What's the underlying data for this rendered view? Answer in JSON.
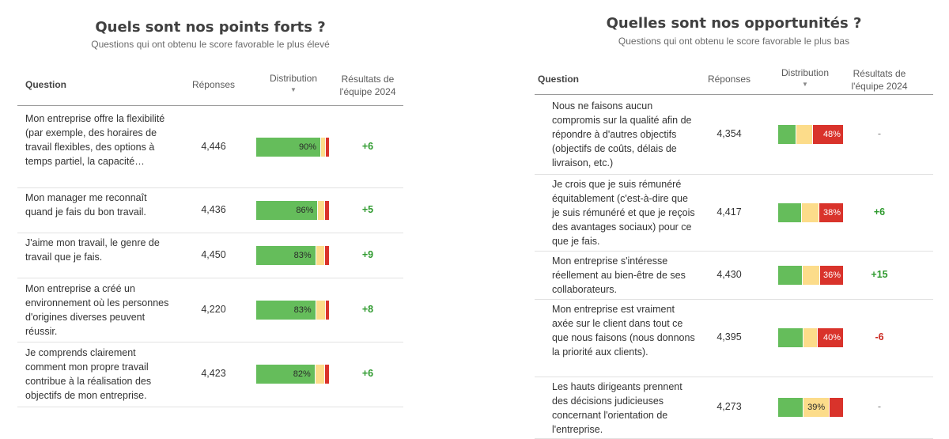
{
  "left_panel": {
    "title": "Quels sont nos points forts ?",
    "subtitle": "Questions qui ont obtenu le score favorable le plus élevé",
    "columns": {
      "question": "Question",
      "responses": "Réponses",
      "distribution": "Distribution",
      "results": "Résultats de l'équipe 2024"
    },
    "rows": [
      {
        "question": "Mon entreprise offre la flexibilité (par exemple, des horaires de travail flexibles, des options à temps partiel, la capacité…",
        "responses": "4,446",
        "favorable_label": "90%",
        "favorable": 90,
        "neutral": 5,
        "unfavorable": 5,
        "result": "+6",
        "trend": "pos"
      },
      {
        "question": "Mon manager me reconnaît quand je fais du bon travail.",
        "responses": "4,436",
        "favorable_label": "86%",
        "favorable": 86,
        "neutral": 8,
        "unfavorable": 6,
        "result": "+5",
        "trend": "pos"
      },
      {
        "question": "J'aime mon travail, le genre de travail que je fais.",
        "responses": "4,450",
        "favorable_label": "83%",
        "favorable": 83,
        "neutral": 12,
        "unfavorable": 5,
        "result": "+9",
        "trend": "pos"
      },
      {
        "question": "Mon entreprise a créé un environnement où les personnes d'origines diverses peuvent réussir.",
        "responses": "4,220",
        "favorable_label": "83%",
        "favorable": 83,
        "neutral": 13,
        "unfavorable": 4,
        "result": "+8",
        "trend": "pos"
      },
      {
        "question": "Je comprends clairement comment mon propre travail contribue à la réalisation des objectifs de mon entreprise.",
        "responses": "4,423",
        "favorable_label": "82%",
        "favorable": 82,
        "neutral": 13,
        "unfavorable": 5,
        "result": "+6",
        "trend": "pos"
      }
    ]
  },
  "right_panel": {
    "title": "Quelles sont nos opportunités ?",
    "subtitle": "Questions qui ont obtenu le score favorable le plus bas",
    "columns": {
      "question": "Question",
      "responses": "Réponses",
      "distribution": "Distribution",
      "results": "Résultats de l'équipe 2024"
    },
    "rows": [
      {
        "question": "Nous ne faisons aucun compromis sur la qualité afin de répondre à d'autres objectifs (objectifs de coûts, délais de livraison, etc.)",
        "responses": "4,354",
        "unfavorable_label": "48%",
        "favorable": 28,
        "neutral": 24,
        "unfavorable": 48,
        "result": "-",
        "trend": "none"
      },
      {
        "question": "Je crois que je suis rémunéré équitablement (c'est-à-dire que je suis rémunéré et que je reçois des avantages sociaux) pour ce que je fais.",
        "responses": "4,417",
        "unfavorable_label": "38%",
        "favorable": 36,
        "neutral": 26,
        "unfavorable": 38,
        "result": "+6",
        "trend": "pos"
      },
      {
        "question": "Mon entreprise s'intéresse réellement au bien-être de ses collaborateurs.",
        "responses": "4,430",
        "unfavorable_label": "36%",
        "favorable": 37,
        "neutral": 27,
        "unfavorable": 36,
        "result": "+15",
        "trend": "pos"
      },
      {
        "question": "Mon entreprise est vraiment axée sur le client dans tout ce que nous faisons (nous donnons la priorité aux clients).",
        "responses": "4,395",
        "unfavorable_label": "40%",
        "favorable": 39,
        "neutral": 21,
        "unfavorable": 40,
        "result": "-6",
        "trend": "neg"
      },
      {
        "question": "Les hauts dirigeants prennent des décisions judicieuses concernant l'orientation de l'entreprise.",
        "responses": "4,273",
        "favorable_label": "39%",
        "favorable": 39,
        "neutral": 40,
        "unfavorable": 21,
        "result": "-",
        "trend": "none",
        "label_on": "neutral"
      }
    ]
  }
}
